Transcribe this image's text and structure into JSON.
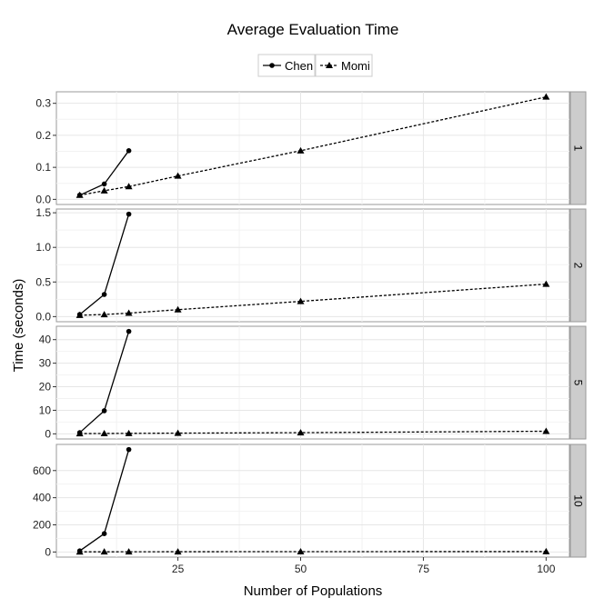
{
  "chart_data": {
    "type": "line",
    "title": "Average Evaluation Time",
    "xlabel": "Number of Populations",
    "ylabel": "Time (seconds)",
    "x_ticks": [
      25,
      50,
      75,
      100
    ],
    "xlim": [
      0.25,
      104.75
    ],
    "grid": true,
    "legend": {
      "placement": "top",
      "entries": [
        "Chen",
        "Momi"
      ]
    },
    "series_styles": {
      "Chen": {
        "line": "solid",
        "marker": "circle"
      },
      "Momi": {
        "line": "dashed",
        "marker": "triangle"
      }
    },
    "facets": [
      {
        "label": "1",
        "y_ticks": [
          0.0,
          0.1,
          0.2,
          0.3
        ],
        "y_tick_labels": [
          "0.0",
          "0.1",
          "0.2",
          "0.3"
        ],
        "series": [
          {
            "name": "Chen",
            "x": [
              5,
              10,
              15
            ],
            "y": [
              0.013,
              0.048,
              0.152
            ]
          },
          {
            "name": "Momi",
            "x": [
              5,
              10,
              15,
              25,
              50,
              100
            ],
            "y": [
              0.013,
              0.027,
              0.04,
              0.073,
              0.152,
              0.32
            ]
          }
        ]
      },
      {
        "label": "2",
        "y_ticks": [
          0.0,
          0.5,
          1.0,
          1.5
        ],
        "y_tick_labels": [
          "0.0",
          "0.5",
          "1.0",
          "1.5"
        ],
        "series": [
          {
            "name": "Chen",
            "x": [
              5,
              10,
              15
            ],
            "y": [
              0.03,
              0.32,
              1.48
            ]
          },
          {
            "name": "Momi",
            "x": [
              5,
              10,
              15,
              25,
              50,
              100
            ],
            "y": [
              0.02,
              0.03,
              0.05,
              0.1,
              0.22,
              0.47
            ]
          }
        ]
      },
      {
        "label": "5",
        "y_ticks": [
          0,
          10,
          20,
          30,
          40
        ],
        "y_tick_labels": [
          "0",
          "10",
          "20",
          "30",
          "40"
        ],
        "series": [
          {
            "name": "Chen",
            "x": [
              5,
              10,
              15
            ],
            "y": [
              0.5,
              9.8,
              43.5
            ]
          },
          {
            "name": "Momi",
            "x": [
              5,
              10,
              15,
              25,
              50,
              100
            ],
            "y": [
              0.1,
              0.15,
              0.2,
              0.3,
              0.5,
              1.1
            ]
          }
        ]
      },
      {
        "label": "10",
        "y_ticks": [
          0,
          200,
          400,
          600
        ],
        "y_tick_labels": [
          "0",
          "200",
          "400",
          "600"
        ],
        "series": [
          {
            "name": "Chen",
            "x": [
              5,
              10,
              15
            ],
            "y": [
              8,
              135,
              755
            ]
          },
          {
            "name": "Momi",
            "x": [
              5,
              10,
              15,
              25,
              50,
              100
            ],
            "y": [
              1,
              1.2,
              1.5,
              2,
              2.5,
              3
            ]
          }
        ]
      }
    ]
  }
}
